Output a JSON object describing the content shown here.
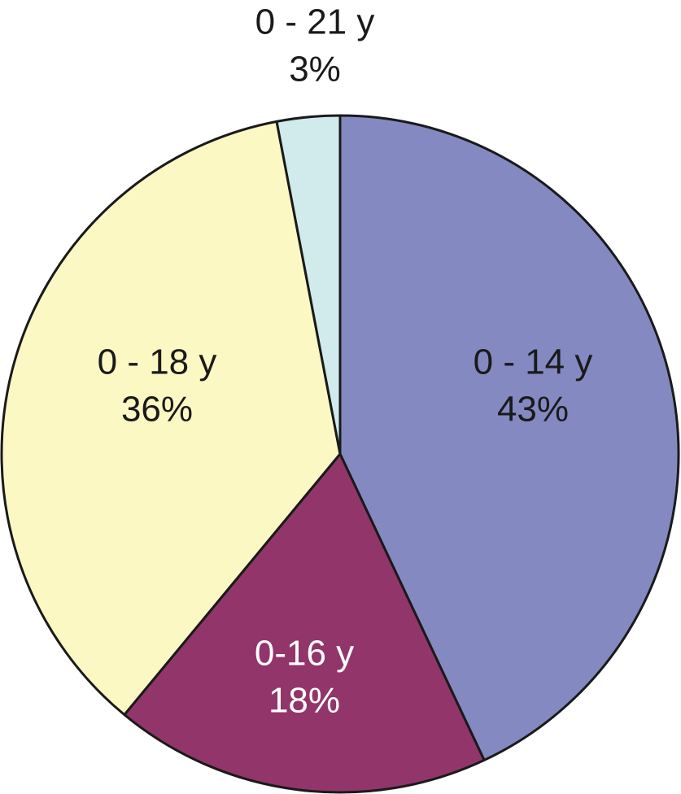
{
  "chart_data": {
    "type": "pie",
    "title": "",
    "start_angle_deg": 0,
    "direction": "clockwise",
    "slices": [
      {
        "label": "0 - 14 y",
        "value": 43,
        "value_label": "43%",
        "color": "#8489c2",
        "text_color": "#1a1a1a"
      },
      {
        "label": "0-16 y",
        "value": 18,
        "value_label": "18%",
        "color": "#92356a",
        "text_color": "#ffffff"
      },
      {
        "label": "0 - 18 y",
        "value": 36,
        "value_label": "36%",
        "color": "#fbf8c3",
        "text_color": "#1a1a1a"
      },
      {
        "label": "0 - 21 y",
        "value": 3,
        "value_label": "3%",
        "color": "#d1eaec",
        "text_color": "#1a1a1a"
      }
    ]
  }
}
